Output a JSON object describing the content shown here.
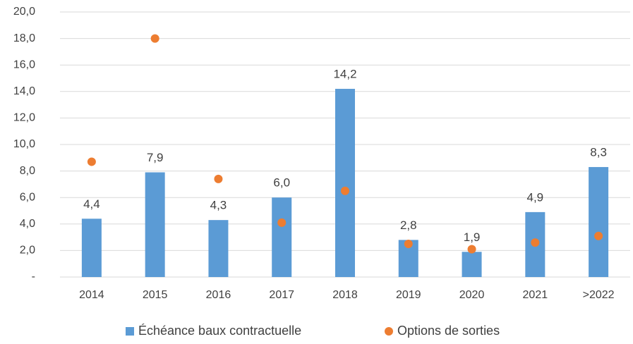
{
  "chart_data": {
    "type": "bar",
    "categories": [
      "2014",
      "2015",
      "2016",
      "2017",
      "2018",
      "2019",
      "2020",
      "2021",
      ">2022"
    ],
    "series": [
      {
        "name": "Échéance baux contractuelle",
        "type": "bar",
        "color": "#5b9bd5",
        "values": [
          4.4,
          7.9,
          4.3,
          6.0,
          14.2,
          2.8,
          1.9,
          4.9,
          8.3
        ],
        "value_labels": [
          "4,4",
          "7,9",
          "4,3",
          "6,0",
          "14,2",
          "2,8",
          "1,9",
          "4,9",
          "8,3"
        ]
      },
      {
        "name": "Options de sorties",
        "type": "scatter",
        "color": "#ed7d31",
        "values": [
          8.7,
          18.0,
          7.4,
          4.1,
          6.5,
          2.5,
          2.1,
          2.6,
          3.1
        ]
      }
    ],
    "ylim": [
      0,
      20
    ],
    "yticks": [
      {
        "value": 0,
        "label": "-"
      },
      {
        "value": 2,
        "label": "2,0"
      },
      {
        "value": 4,
        "label": "4,0"
      },
      {
        "value": 6,
        "label": "6,0"
      },
      {
        "value": 8,
        "label": "8,0"
      },
      {
        "value": 10,
        "label": "10,0"
      },
      {
        "value": 12,
        "label": "12,0"
      },
      {
        "value": 14,
        "label": "14,0"
      },
      {
        "value": 16,
        "label": "16,0"
      },
      {
        "value": 18,
        "label": "18,0"
      },
      {
        "value": 20,
        "label": "20,0"
      }
    ],
    "grid": true,
    "legend": "bottom"
  }
}
